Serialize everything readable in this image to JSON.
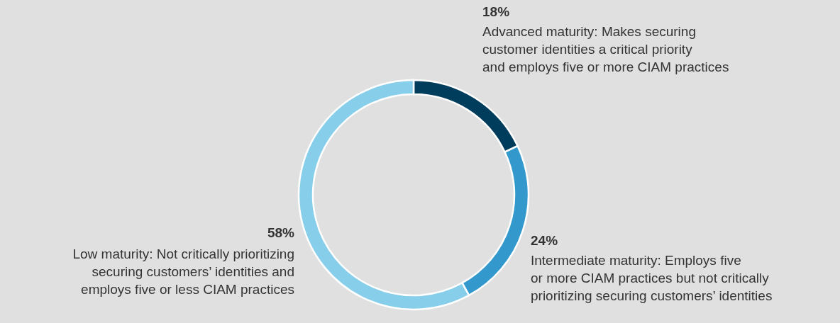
{
  "chart_data": {
    "type": "donut",
    "categories": [
      "Advanced maturity: Makes securing customer identities a critical priority and employs five or more CIAM practices",
      "Intermediate maturity: Employs five or more CIAM practices but not critically prioritizing securing customers’ identities",
      "Low maturity: Not critically prioritizing securing customers’ identities and employs five or less CIAM practices"
    ],
    "values": [
      18,
      24,
      58
    ],
    "value_labels": [
      "18%",
      "24%",
      "58%"
    ],
    "colors": [
      "#003d5c",
      "#3399cc",
      "#87ceeb"
    ]
  }
}
